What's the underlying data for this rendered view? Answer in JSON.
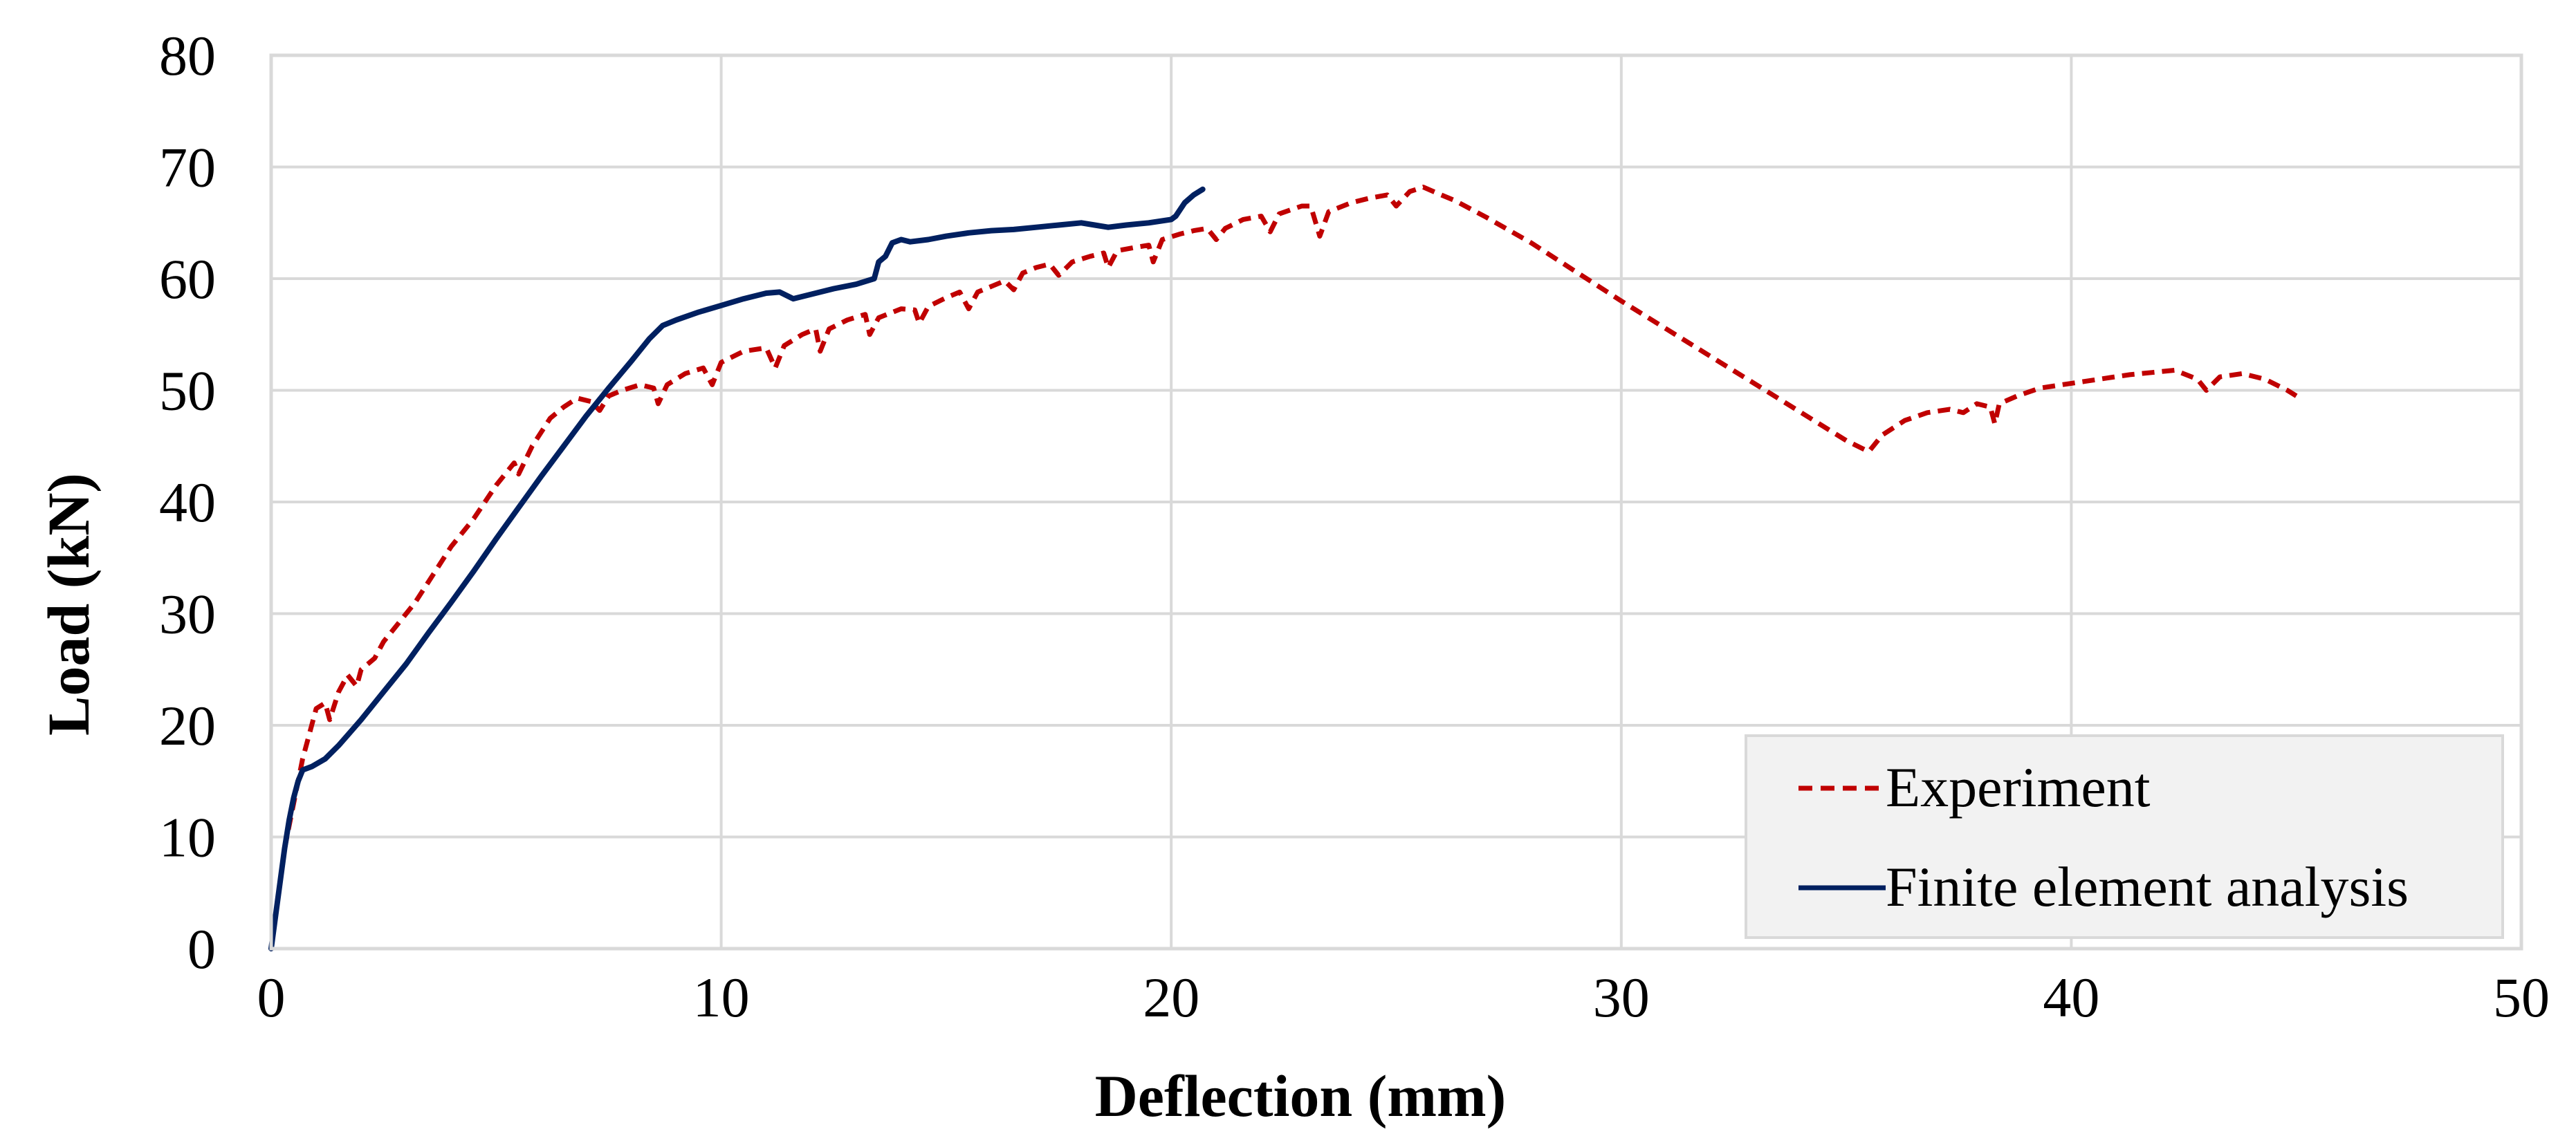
{
  "chart_data": {
    "type": "line",
    "title": "",
    "xlabel": "Deflection (mm)",
    "ylabel": "Load (kN)",
    "xlim": [
      0,
      50
    ],
    "ylim": [
      0,
      80
    ],
    "xticks": [
      0,
      10,
      20,
      30,
      40,
      50
    ],
    "yticks": [
      0,
      10,
      20,
      30,
      40,
      50,
      60,
      70,
      80
    ],
    "xtick_labels": [
      "0",
      "10",
      "20",
      "30",
      "40",
      "50"
    ],
    "ytick_labels": [
      "0",
      "10",
      "20",
      "30",
      "40",
      "50",
      "60",
      "70",
      "80"
    ],
    "grid": true,
    "legend_position": "bottom-right",
    "series": [
      {
        "name": "Experiment",
        "style": "dashed",
        "color": "#C00000",
        "points": [
          [
            0,
            0
          ],
          [
            0.1,
            3
          ],
          [
            0.2,
            6
          ],
          [
            0.3,
            9
          ],
          [
            0.5,
            13
          ],
          [
            0.7,
            17
          ],
          [
            0.9,
            20
          ],
          [
            1.0,
            21.5
          ],
          [
            1.2,
            22
          ],
          [
            1.3,
            20.5
          ],
          [
            1.5,
            23
          ],
          [
            1.7,
            24.5
          ],
          [
            1.9,
            23.5
          ],
          [
            2.0,
            25
          ],
          [
            2.3,
            26
          ],
          [
            2.5,
            27.5
          ],
          [
            2.8,
            29
          ],
          [
            3.2,
            31
          ],
          [
            3.6,
            33.5
          ],
          [
            4.0,
            36
          ],
          [
            4.5,
            38.5
          ],
          [
            5.0,
            41.5
          ],
          [
            5.4,
            43.5
          ],
          [
            5.5,
            42.5
          ],
          [
            5.8,
            45
          ],
          [
            6.2,
            47.5
          ],
          [
            6.5,
            48.5
          ],
          [
            6.8,
            49.3
          ],
          [
            7.1,
            49
          ],
          [
            7.3,
            48.2
          ],
          [
            7.5,
            49.5
          ],
          [
            7.8,
            50
          ],
          [
            8.2,
            50.5
          ],
          [
            8.5,
            50.2
          ],
          [
            8.6,
            48.8
          ],
          [
            8.8,
            50.5
          ],
          [
            9.2,
            51.5
          ],
          [
            9.6,
            52
          ],
          [
            9.8,
            50.5
          ],
          [
            10.0,
            52.5
          ],
          [
            10.5,
            53.5
          ],
          [
            11.0,
            53.8
          ],
          [
            11.2,
            52
          ],
          [
            11.4,
            54
          ],
          [
            11.8,
            55
          ],
          [
            12.1,
            55.5
          ],
          [
            12.2,
            53.5
          ],
          [
            12.4,
            55.5
          ],
          [
            12.8,
            56.3
          ],
          [
            13.2,
            56.8
          ],
          [
            13.3,
            55
          ],
          [
            13.5,
            56.5
          ],
          [
            14.0,
            57.3
          ],
          [
            14.3,
            57.2
          ],
          [
            14.4,
            56
          ],
          [
            14.6,
            57.5
          ],
          [
            15.0,
            58.3
          ],
          [
            15.3,
            58.8
          ],
          [
            15.5,
            57.3
          ],
          [
            15.7,
            58.8
          ],
          [
            16.0,
            59.3
          ],
          [
            16.3,
            59.8
          ],
          [
            16.5,
            59
          ],
          [
            16.7,
            60.5
          ],
          [
            17.0,
            61
          ],
          [
            17.3,
            61.3
          ],
          [
            17.5,
            60.3
          ],
          [
            17.8,
            61.5
          ],
          [
            18.2,
            62
          ],
          [
            18.5,
            62.3
          ],
          [
            18.6,
            61
          ],
          [
            18.8,
            62.5
          ],
          [
            19.2,
            62.8
          ],
          [
            19.5,
            63
          ],
          [
            19.6,
            61.5
          ],
          [
            19.8,
            63.5
          ],
          [
            20.2,
            64
          ],
          [
            20.5,
            64.3
          ],
          [
            20.8,
            64.5
          ],
          [
            21.0,
            63.5
          ],
          [
            21.2,
            64.5
          ],
          [
            21.6,
            65.3
          ],
          [
            22.0,
            65.6
          ],
          [
            22.2,
            64.2
          ],
          [
            22.4,
            65.8
          ],
          [
            22.9,
            66.5
          ],
          [
            23.1,
            66.5
          ],
          [
            23.3,
            63.8
          ],
          [
            23.5,
            66
          ],
          [
            24.0,
            66.8
          ],
          [
            24.4,
            67.2
          ],
          [
            24.8,
            67.5
          ],
          [
            25.0,
            66.5
          ],
          [
            25.3,
            67.8
          ],
          [
            25.6,
            68.2
          ],
          [
            26.0,
            67.5
          ],
          [
            26.3,
            67
          ],
          [
            27.0,
            65.5
          ],
          [
            28.0,
            63.2
          ],
          [
            29.0,
            60.6
          ],
          [
            30.0,
            58
          ],
          [
            31.0,
            55.5
          ],
          [
            32.0,
            53
          ],
          [
            33.0,
            50.5
          ],
          [
            34.0,
            48
          ],
          [
            35.0,
            45.5
          ],
          [
            35.5,
            44.5
          ],
          [
            35.8,
            46
          ],
          [
            36.3,
            47.3
          ],
          [
            36.8,
            48
          ],
          [
            37.3,
            48.3
          ],
          [
            37.6,
            48
          ],
          [
            37.9,
            48.8
          ],
          [
            38.2,
            48.5
          ],
          [
            38.3,
            47
          ],
          [
            38.4,
            48.8
          ],
          [
            38.8,
            49.5
          ],
          [
            39.3,
            50.2
          ],
          [
            39.8,
            50.5
          ],
          [
            40.3,
            50.8
          ],
          [
            40.8,
            51.1
          ],
          [
            41.3,
            51.4
          ],
          [
            41.8,
            51.6
          ],
          [
            42.3,
            51.8
          ],
          [
            42.8,
            51
          ],
          [
            43.0,
            50
          ],
          [
            43.3,
            51.2
          ],
          [
            43.8,
            51.5
          ],
          [
            44.3,
            51
          ],
          [
            44.8,
            50
          ],
          [
            45.0,
            49.5
          ]
        ]
      },
      {
        "name": "Finite element analysis",
        "style": "solid",
        "color": "#002060",
        "points": [
          [
            0,
            0
          ],
          [
            0.1,
            3
          ],
          [
            0.2,
            6
          ],
          [
            0.3,
            9
          ],
          [
            0.4,
            11.5
          ],
          [
            0.5,
            13.5
          ],
          [
            0.6,
            15
          ],
          [
            0.7,
            16
          ],
          [
            0.9,
            16.3
          ],
          [
            1.2,
            17
          ],
          [
            1.5,
            18.2
          ],
          [
            2.0,
            20.5
          ],
          [
            2.5,
            23
          ],
          [
            3.0,
            25.5
          ],
          [
            3.5,
            28.3
          ],
          [
            4.0,
            31
          ],
          [
            4.5,
            33.8
          ],
          [
            5.0,
            36.7
          ],
          [
            5.5,
            39.5
          ],
          [
            6.0,
            42.3
          ],
          [
            6.5,
            45
          ],
          [
            7.0,
            47.7
          ],
          [
            7.5,
            50.2
          ],
          [
            8.0,
            52.6
          ],
          [
            8.4,
            54.6
          ],
          [
            8.7,
            55.8
          ],
          [
            9.0,
            56.3
          ],
          [
            9.5,
            57
          ],
          [
            10.0,
            57.6
          ],
          [
            10.5,
            58.2
          ],
          [
            11.0,
            58.7
          ],
          [
            11.3,
            58.8
          ],
          [
            11.6,
            58.2
          ],
          [
            12.0,
            58.6
          ],
          [
            12.5,
            59.1
          ],
          [
            13.0,
            59.5
          ],
          [
            13.4,
            60
          ],
          [
            13.5,
            61.5
          ],
          [
            13.65,
            62
          ],
          [
            13.8,
            63.2
          ],
          [
            14.0,
            63.5
          ],
          [
            14.2,
            63.3
          ],
          [
            14.6,
            63.5
          ],
          [
            15.0,
            63.8
          ],
          [
            15.5,
            64.1
          ],
          [
            16.0,
            64.3
          ],
          [
            16.5,
            64.4
          ],
          [
            17.0,
            64.6
          ],
          [
            17.5,
            64.8
          ],
          [
            18.0,
            65
          ],
          [
            18.3,
            64.8
          ],
          [
            18.6,
            64.6
          ],
          [
            19.0,
            64.8
          ],
          [
            19.5,
            65
          ],
          [
            20.0,
            65.3
          ],
          [
            20.1,
            65.6
          ],
          [
            20.3,
            66.8
          ],
          [
            20.5,
            67.5
          ],
          [
            20.7,
            68
          ]
        ]
      }
    ]
  }
}
